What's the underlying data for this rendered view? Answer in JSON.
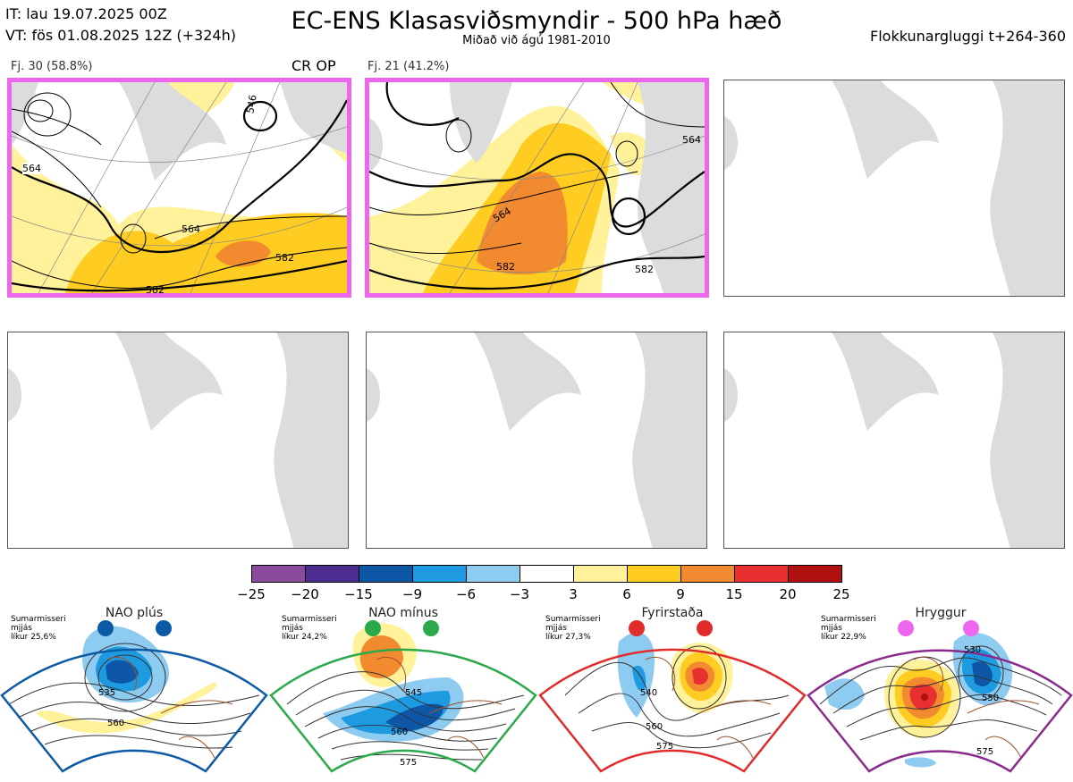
{
  "header": {
    "it": "IT: lau 19.07.2025 00Z",
    "vt": "VT: fös 01.08.2025 12Z  (+324h)",
    "title": "EC-ENS Klasasviðsmyndir - 500 hPa hæð",
    "subtitle": "Miðað við ágú 1981-2010",
    "window": "Flokkunargluggi t+264-360"
  },
  "panels": [
    {
      "label": "Fj. 30 (58.8%)",
      "tag": "CR OP",
      "contours": [
        "564",
        "582",
        "546",
        "564",
        "582"
      ]
    },
    {
      "label": "Fj. 21 (41.2%)",
      "contours": [
        "564",
        "582",
        "564",
        "582"
      ]
    }
  ],
  "colorbar": {
    "colors": [
      "#8c4a9c",
      "#4b2e8f",
      "#0e56a6",
      "#1e9be0",
      "#8ecbf0",
      "#ffffff",
      "#fff29a",
      "#ffcc22",
      "#f28a30",
      "#e83030",
      "#b01010"
    ],
    "ticks": [
      "−25",
      "−20",
      "−15",
      "−9",
      "−6",
      "−3",
      "3",
      "6",
      "9",
      "15",
      "20",
      "25"
    ]
  },
  "regimes": [
    {
      "name": "NAO plús",
      "desc": [
        "Sumarmisseri",
        "mjjás",
        "líkur 25,6%"
      ],
      "labels": [
        "535",
        "560"
      ],
      "border": "#0c5aa6",
      "dot": "#0c5aa6"
    },
    {
      "name": "NAO mínus",
      "desc": [
        "Sumarmisseri",
        "mjjás",
        "líkur 24,2%"
      ],
      "labels": [
        "545",
        "560",
        "575"
      ],
      "border": "#2aa84a",
      "dot": "#2aa84a"
    },
    {
      "name": "Fyrirstaða",
      "desc": [
        "Sumarmisseri",
        "mjjás",
        "líkur 27,3%"
      ],
      "labels": [
        "540",
        "560",
        "575"
      ],
      "border": "#e22b2b",
      "dot": "#e22b2b"
    },
    {
      "name": "Hryggur",
      "desc": [
        "Sumarmisseri",
        "mjjás",
        "líkur 22,9%"
      ],
      "labels": [
        "530",
        "550",
        "575"
      ],
      "border": "#8a2a8e",
      "dot": "#ee66ee"
    }
  ]
}
